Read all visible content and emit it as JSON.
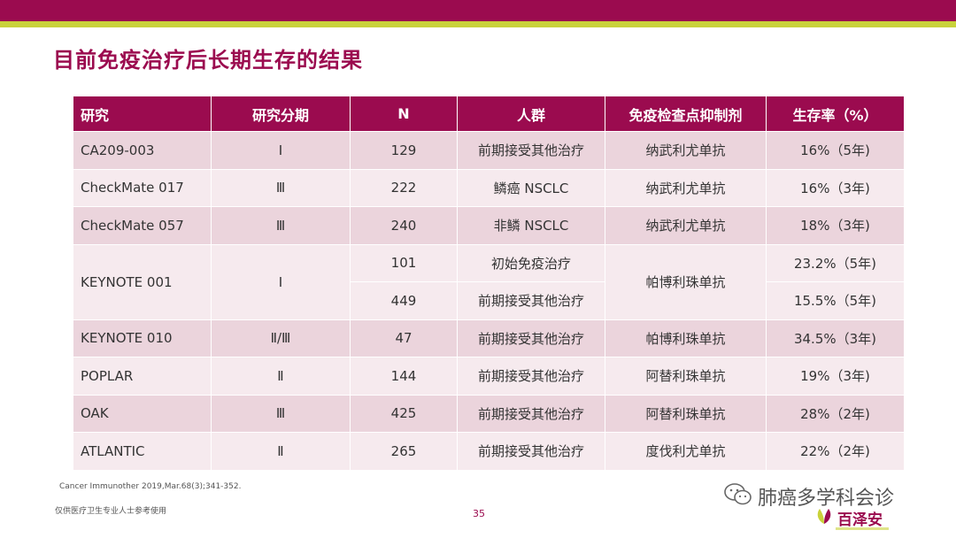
{
  "slide": {
    "title": "目前免疫治疗后长期生存的结果",
    "page_number": "35",
    "citation": "Cancer Immunother 2019,Mar.68(3);341-352.",
    "disclaimer": "仅供医疗卫生专业人士参考使用"
  },
  "table": {
    "headers": [
      "研究",
      "研究分期",
      "N",
      "人群",
      "免疫检查点抑制剂",
      "生存率（%）"
    ],
    "rows": [
      {
        "study": "CA209-003",
        "phase": "Ⅰ",
        "n": "129",
        "population": "前期接受其他治疗",
        "drug": "纳武利尤单抗",
        "survival": "16%（5年)"
      },
      {
        "study": "CheckMate 017",
        "phase": "Ⅲ",
        "n": "222",
        "population": "鳞癌 NSCLC",
        "drug": "纳武利尤单抗",
        "survival": "16%（3年)"
      },
      {
        "study": "CheckMate 057",
        "phase": "Ⅲ",
        "n": "240",
        "population": "非鳞 NSCLC",
        "drug": "纳武利尤单抗",
        "survival": "18%（3年)"
      },
      {
        "study": "KEYNOTE 001",
        "phase": "Ⅰ",
        "n": "101",
        "population": "初始免疫治疗",
        "drug": "帕博利珠单抗",
        "survival": "23.2%（5年)"
      },
      {
        "n": "449",
        "population": "前期接受其他治疗",
        "survival": "15.5%（5年)"
      },
      {
        "study": "KEYNOTE 010",
        "phase": "Ⅱ/Ⅲ",
        "n": "47",
        "population": "前期接受其他治疗",
        "drug": "帕博利珠单抗",
        "survival": "34.5%（3年)"
      },
      {
        "study": "POPLAR",
        "phase": "Ⅱ",
        "n": "144",
        "population": "前期接受其他治疗",
        "drug": "阿替利珠单抗",
        "survival": "19%（3年)"
      },
      {
        "study": "OAK",
        "phase": "Ⅲ",
        "n": "425",
        "population": "前期接受其他治疗",
        "drug": "阿替利珠单抗",
        "survival": "28%（2年)"
      },
      {
        "study": "ATLANTIC",
        "phase": "Ⅱ",
        "n": "265",
        "population": "前期接受其他治疗",
        "drug": "度伐利尤单抗",
        "survival": "22%（2年)"
      }
    ]
  },
  "watermark": {
    "label": "肺癌多学科会诊",
    "icon": "wechat-icon"
  },
  "logo": {
    "text": "百泽安",
    "icon": "leaf-logo-icon"
  },
  "colors": {
    "brand": "#9b0b4f",
    "accent": "#c9d23a",
    "row_odd": "#ebd4dc",
    "row_even": "#f6eaee"
  }
}
